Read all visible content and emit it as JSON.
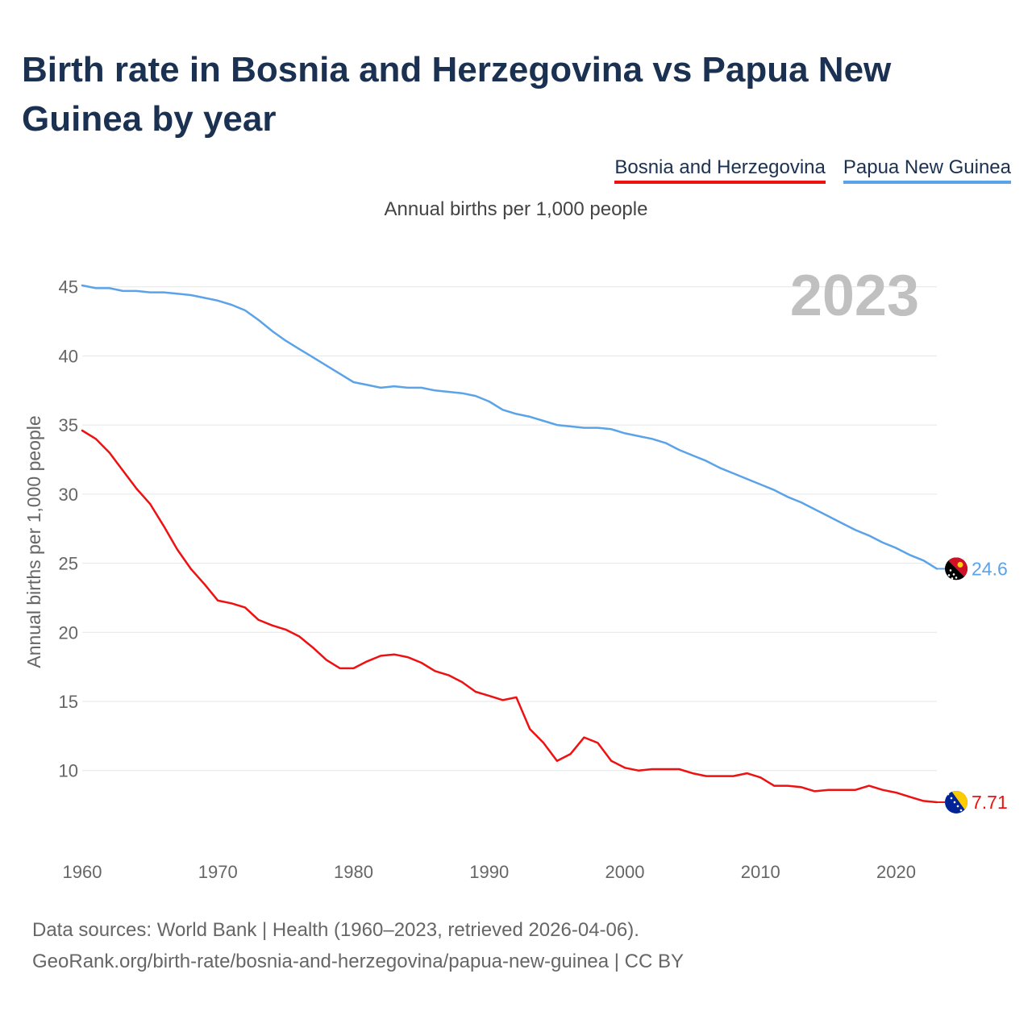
{
  "title": "Birth rate in Bosnia and Herzegovina vs Papua New Guinea by year",
  "subtitle": "Annual births per 1,000 people",
  "colors": {
    "bih": "#ee1111",
    "png": "#5ba3e8",
    "grid": "#e6e6e6",
    "axis_text": "#666666",
    "watermark": "#c0c0c0"
  },
  "chart_data": {
    "type": "line",
    "title": "Birth rate in Bosnia and Herzegovina vs Papua New Guinea by year",
    "ylabel": "Annual births per 1,000 people",
    "xlabel": "",
    "xlim": [
      1960,
      2023
    ],
    "ylim": [
      4.5,
      46.5
    ],
    "x_ticks": [
      1960,
      1970,
      1980,
      1990,
      2000,
      2010,
      2020
    ],
    "y_ticks": [
      10,
      15,
      20,
      25,
      30,
      35,
      40,
      45
    ],
    "grid": true,
    "legend_position": "top-right",
    "year_watermark": "2023",
    "series": [
      {
        "name": "Bosnia and Herzegovina",
        "color": "#ee1111",
        "end_label": "7.71",
        "flag": "bosnia-and-herzegovina-flag",
        "x": [
          1960,
          1961,
          1962,
          1963,
          1964,
          1965,
          1966,
          1967,
          1968,
          1969,
          1970,
          1971,
          1972,
          1973,
          1974,
          1975,
          1976,
          1977,
          1978,
          1979,
          1980,
          1981,
          1982,
          1983,
          1984,
          1985,
          1986,
          1987,
          1988,
          1989,
          1990,
          1991,
          1992,
          1993,
          1994,
          1995,
          1996,
          1997,
          1998,
          1999,
          2000,
          2001,
          2002,
          2003,
          2004,
          2005,
          2006,
          2007,
          2008,
          2009,
          2010,
          2011,
          2012,
          2013,
          2014,
          2015,
          2016,
          2017,
          2018,
          2019,
          2020,
          2021,
          2022,
          2023
        ],
        "values": [
          34.6,
          34.0,
          33.0,
          31.7,
          30.4,
          29.3,
          27.7,
          26.0,
          24.6,
          23.5,
          22.3,
          22.1,
          21.8,
          20.9,
          20.5,
          20.2,
          19.7,
          18.9,
          18.0,
          17.4,
          17.4,
          17.9,
          18.3,
          18.4,
          18.2,
          17.8,
          17.2,
          16.9,
          16.4,
          15.7,
          15.4,
          15.1,
          15.3,
          13.0,
          12.0,
          10.7,
          11.2,
          12.4,
          12.0,
          10.7,
          10.2,
          10.0,
          10.1,
          10.1,
          10.1,
          9.8,
          9.6,
          9.6,
          9.6,
          9.8,
          9.5,
          8.9,
          8.9,
          8.8,
          8.5,
          8.6,
          8.6,
          8.6,
          8.9,
          8.6,
          8.4,
          8.1,
          7.8,
          7.71
        ]
      },
      {
        "name": "Papua New Guinea",
        "color": "#5ba3e8",
        "end_label": "24.6",
        "flag": "papua-new-guinea-flag",
        "x": [
          1960,
          1961,
          1962,
          1963,
          1964,
          1965,
          1966,
          1967,
          1968,
          1969,
          1970,
          1971,
          1972,
          1973,
          1974,
          1975,
          1976,
          1977,
          1978,
          1979,
          1980,
          1981,
          1982,
          1983,
          1984,
          1985,
          1986,
          1987,
          1988,
          1989,
          1990,
          1991,
          1992,
          1993,
          1994,
          1995,
          1996,
          1997,
          1998,
          1999,
          2000,
          2001,
          2002,
          2003,
          2004,
          2005,
          2006,
          2007,
          2008,
          2009,
          2010,
          2011,
          2012,
          2013,
          2014,
          2015,
          2016,
          2017,
          2018,
          2019,
          2020,
          2021,
          2022,
          2023
        ],
        "values": [
          45.1,
          44.9,
          44.9,
          44.7,
          44.7,
          44.6,
          44.6,
          44.5,
          44.4,
          44.2,
          44.0,
          43.7,
          43.3,
          42.6,
          41.8,
          41.1,
          40.5,
          39.9,
          39.3,
          38.7,
          38.1,
          37.9,
          37.7,
          37.8,
          37.7,
          37.7,
          37.5,
          37.4,
          37.3,
          37.1,
          36.7,
          36.1,
          35.8,
          35.6,
          35.3,
          35.0,
          34.9,
          34.8,
          34.8,
          34.7,
          34.4,
          34.2,
          34.0,
          33.7,
          33.2,
          32.8,
          32.4,
          31.9,
          31.5,
          31.1,
          30.7,
          30.3,
          29.8,
          29.4,
          28.9,
          28.4,
          27.9,
          27.4,
          27.0,
          26.5,
          26.1,
          25.6,
          25.2,
          24.6
        ]
      }
    ]
  },
  "footer": {
    "line1": "Data sources: World Bank | Health (1960–2023, retrieved 2026-04-06).",
    "line2": "GeoRank.org/birth-rate/bosnia-and-herzegovina/papua-new-guinea | CC BY"
  }
}
